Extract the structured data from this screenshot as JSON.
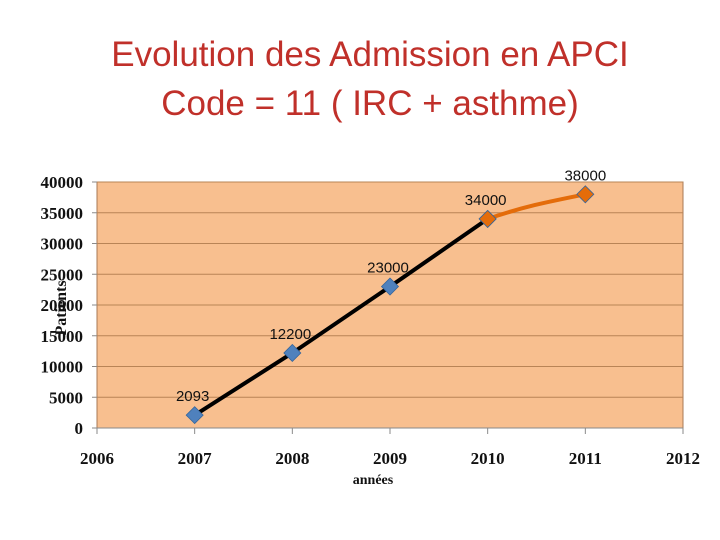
{
  "slide": {
    "title_line1": "Evolution des Admission en APCI",
    "title_line2": "Code = 11 ( IRC + asthme)"
  },
  "colors": {
    "title": "#c0302a",
    "plot_background": "#f8bf8f",
    "gridline": "#b98456",
    "actual_line": "#000000",
    "projected_line": "#e46c0a",
    "marker": "#4f81bd"
  },
  "chart_data": {
    "type": "line",
    "xlabel": "années",
    "ylabel": "Patients",
    "xlim": [
      2006,
      2012
    ],
    "ylim": [
      0,
      40000
    ],
    "x_ticks": [
      2006,
      2007,
      2008,
      2009,
      2010,
      2011,
      2012
    ],
    "y_ticks": [
      0,
      5000,
      10000,
      15000,
      20000,
      25000,
      30000,
      35000,
      40000
    ],
    "grid": true,
    "legend": "none",
    "series": [
      {
        "style": "actual",
        "color": "#000000",
        "marker_color": "#4f81bd",
        "x": [
          2007,
          2008,
          2009,
          2010
        ],
        "values": [
          2093,
          12200,
          23000,
          34000
        ],
        "labels": [
          "2093",
          "12200",
          "23000",
          "34000"
        ]
      },
      {
        "style": "projected",
        "color": "#e46c0a",
        "marker_color": "#e46c0a",
        "x": [
          2010,
          2011
        ],
        "values": [
          34000,
          38000
        ],
        "labels": [
          "",
          "38000"
        ]
      }
    ]
  }
}
